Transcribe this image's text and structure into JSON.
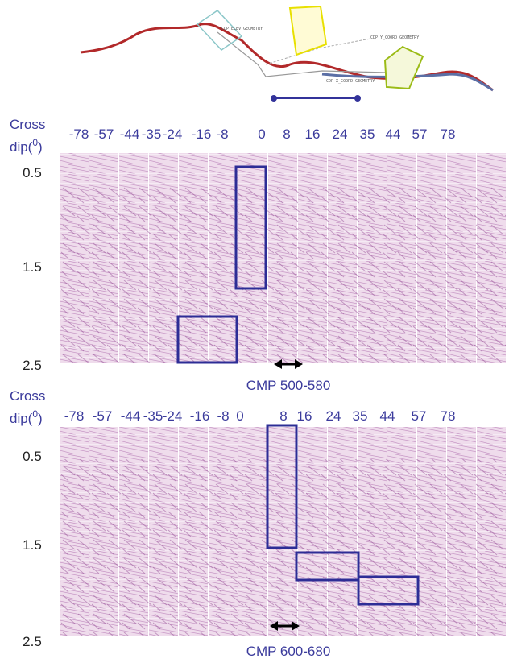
{
  "header": {
    "labels": [
      "CDP_ELEV GEOMETRY",
      "CDP Y_COORD GEOMETRY",
      "CDP X_COORD GEOMETRY"
    ]
  },
  "panels": [
    {
      "axis_title": "Cross",
      "axis_title_2": "dip(",
      "superscript": "0",
      "axis_title_close": ")",
      "dips": [
        "-78",
        "-57",
        "-44",
        "-35",
        "-24",
        "-16",
        "-8",
        "0",
        "8",
        "16",
        "24",
        "35",
        "44",
        "57",
        "78"
      ],
      "times": [
        "0.5",
        "1.5",
        "2.5"
      ],
      "caption": "CMP 500-580"
    },
    {
      "axis_title": "Cross",
      "axis_title_2": "dip(",
      "superscript": "0",
      "axis_title_close": ")",
      "dips": [
        "-78",
        "-57",
        "-44",
        "-35",
        "-24",
        "-16",
        "-8",
        "0",
        "8",
        "16",
        "24",
        "35",
        "44",
        "57",
        "78"
      ],
      "times": [
        "0.5",
        "1.5",
        "2.5"
      ],
      "caption": "CMP 600-680"
    }
  ]
}
